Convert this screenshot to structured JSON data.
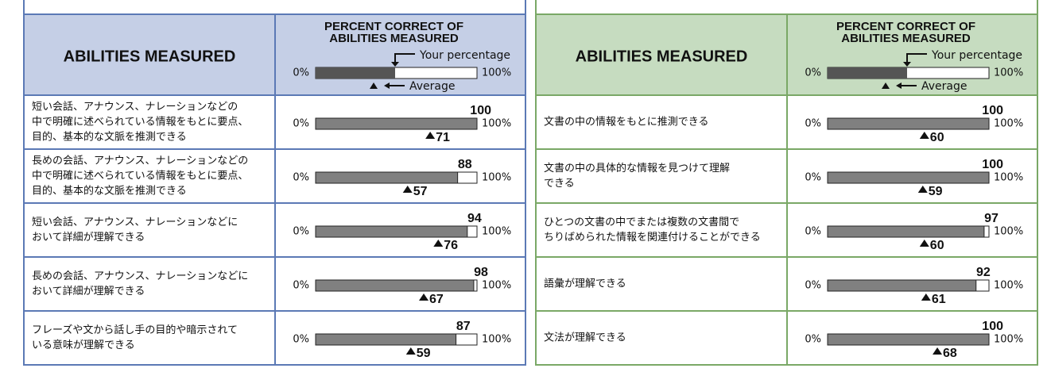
{
  "scale": {
    "min": 0,
    "max": 100,
    "min_label": "0%",
    "max_label": "100%"
  },
  "legend": {
    "your_percentage": "Your percentage",
    "average": "Average"
  },
  "panels": [
    {
      "header_color": "#c5cfe6",
      "border_color": "#5b79b5",
      "abilities_title": "ABILITIES MEASURED",
      "percent_title": [
        "PERCENT CORRECT OF",
        "ABILITIES MEASURED"
      ],
      "rows": [
        {
          "ability": [
            "短い会話、アナウンス、ナレーションなどの",
            "中で明確に述べられている情報をもとに要点、",
            "目的、基本的な文脈を推測できる"
          ],
          "score": 100,
          "average": 71
        },
        {
          "ability": [
            "長めの会話、アナウンス、ナレーションなどの",
            "中で明確に述べられている情報をもとに要点、",
            "目的、基本的な文脈を推測できる"
          ],
          "score": 88,
          "average": 57
        },
        {
          "ability": [
            "短い会話、アナウンス、ナレーションなどに",
            "おいて詳細が理解できる"
          ],
          "score": 94,
          "average": 76
        },
        {
          "ability": [
            "長めの会話、アナウンス、ナレーションなどに",
            "おいて詳細が理解できる"
          ],
          "score": 98,
          "average": 67
        },
        {
          "ability": [
            "フレーズや文から話し手の目的や暗示されて",
            "いる意味が理解できる"
          ],
          "score": 87,
          "average": 59
        }
      ]
    },
    {
      "header_color": "#c6dcc0",
      "border_color": "#7aa866",
      "abilities_title": "ABILITIES MEASURED",
      "percent_title": [
        "PERCENT CORRECT OF",
        "ABILITIES MEASURED"
      ],
      "rows": [
        {
          "ability": [
            "文書の中の情報をもとに推測できる"
          ],
          "score": 100,
          "average": 60
        },
        {
          "ability": [
            "文書の中の具体的な情報を見つけて理解",
            "できる"
          ],
          "score": 100,
          "average": 59
        },
        {
          "ability": [
            "ひとつの文書の中でまたは複数の文書間で",
            "ちりばめられた情報を関連付けることができる"
          ],
          "score": 97,
          "average": 60
        },
        {
          "ability": [
            "語彙が理解できる"
          ],
          "score": 92,
          "average": 61
        },
        {
          "ability": [
            "文法が理解できる"
          ],
          "score": 100,
          "average": 68
        }
      ]
    }
  ]
}
